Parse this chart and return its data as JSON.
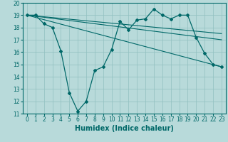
{
  "title": "",
  "xlabel": "Humidex (Indice chaleur)",
  "ylabel": "",
  "xlim": [
    -0.5,
    23.5
  ],
  "ylim": [
    11,
    20
  ],
  "yticks": [
    11,
    12,
    13,
    14,
    15,
    16,
    17,
    18,
    19,
    20
  ],
  "xticks": [
    0,
    1,
    2,
    3,
    4,
    5,
    6,
    7,
    8,
    9,
    10,
    11,
    12,
    13,
    14,
    15,
    16,
    17,
    18,
    19,
    20,
    21,
    22,
    23
  ],
  "bg_color": "#b8dada",
  "line_color": "#006868",
  "grid_color": "#90c0c0",
  "line1_x": [
    0,
    1,
    2,
    3,
    4,
    5,
    6,
    7,
    8,
    9,
    10,
    11,
    12,
    13,
    14,
    15,
    16,
    17,
    18,
    19,
    20,
    21,
    22,
    23
  ],
  "line1_y": [
    19.0,
    19.0,
    18.3,
    18.0,
    16.1,
    12.7,
    11.2,
    12.0,
    14.5,
    14.8,
    16.2,
    18.5,
    17.8,
    18.6,
    18.7,
    19.5,
    19.0,
    18.7,
    19.0,
    19.0,
    17.2,
    15.9,
    15.0,
    14.8
  ],
  "line2_x": [
    0,
    23
  ],
  "line2_y": [
    19.0,
    17.5
  ],
  "line3_x": [
    0,
    23
  ],
  "line3_y": [
    19.0,
    17.0
  ],
  "line4_x": [
    0,
    23
  ],
  "line4_y": [
    19.0,
    14.8
  ],
  "xlabel_fontsize": 7,
  "tick_fontsize": 5.5
}
